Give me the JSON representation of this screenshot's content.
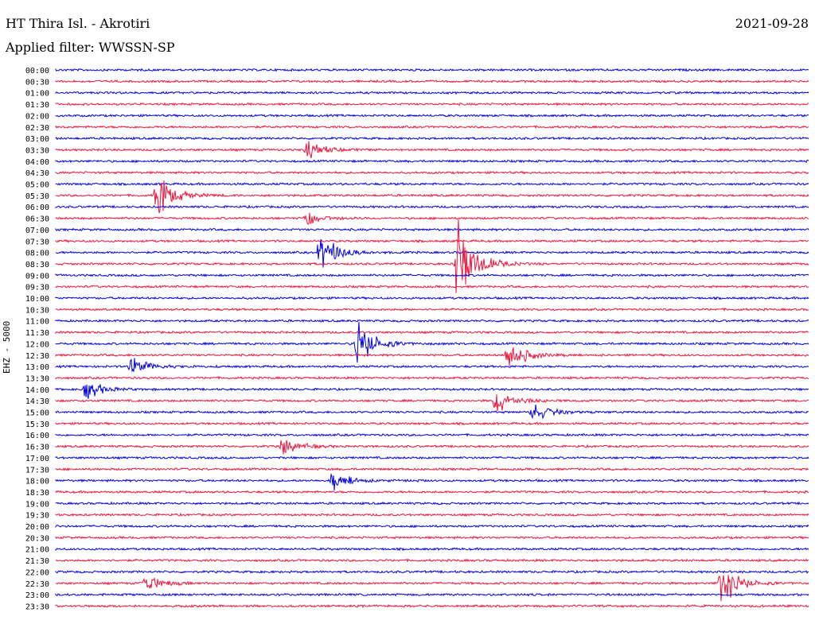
{
  "header": {
    "station": "HT Thira Isl. - Akrotiri",
    "filter": "Applied filter: WWSSN-SP",
    "date": "2021-09-28",
    "channel": "EHZ - 5000"
  },
  "colors": {
    "odd_trace": "#0000e6",
    "even_trace": "#f0143c"
  },
  "chart_data": {
    "type": "line",
    "title": "",
    "xlabel": "",
    "ylabel": "EHZ - 5000",
    "row_labels": [
      "00:00",
      "00:30",
      "01:00",
      "01:30",
      "02:00",
      "02:30",
      "03:00",
      "03:30",
      "04:00",
      "04:30",
      "05:00",
      "05:30",
      "06:00",
      "06:30",
      "07:00",
      "07:30",
      "08:00",
      "08:30",
      "09:00",
      "09:30",
      "10:00",
      "10:30",
      "11:00",
      "11:30",
      "12:00",
      "12:30",
      "13:00",
      "13:30",
      "14:00",
      "14:30",
      "15:00",
      "15:30",
      "16:00",
      "16:30",
      "17:00",
      "17:30",
      "18:00",
      "18:30",
      "19:00",
      "19:30",
      "20:00",
      "20:30",
      "21:00",
      "21:30",
      "22:00",
      "22:30",
      "23:00",
      "23:30"
    ],
    "row_minutes": 30,
    "events": [
      {
        "row": 7,
        "minute": 10.0,
        "amp": 1.8
      },
      {
        "row": 11,
        "minute": 4.0,
        "amp": 4.5
      },
      {
        "row": 13,
        "minute": 10.0,
        "amp": 1.5
      },
      {
        "row": 16,
        "minute": 10.5,
        "amp": 4.5
      },
      {
        "row": 17,
        "minute": 16.0,
        "amp": 10.0
      },
      {
        "row": 24,
        "minute": 12.0,
        "amp": 5.0
      },
      {
        "row": 25,
        "minute": 18.0,
        "amp": 3.5
      },
      {
        "row": 26,
        "minute": 3.0,
        "amp": 2.0
      },
      {
        "row": 28,
        "minute": 1.2,
        "amp": 2.0
      },
      {
        "row": 29,
        "minute": 17.5,
        "amp": 3.0
      },
      {
        "row": 30,
        "minute": 19.0,
        "amp": 2.0
      },
      {
        "row": 33,
        "minute": 9.0,
        "amp": 2.0
      },
      {
        "row": 36,
        "minute": 11.0,
        "amp": 2.0
      },
      {
        "row": 45,
        "minute": 3.5,
        "amp": 2.0
      },
      {
        "row": 45,
        "minute": 26.5,
        "amp": 4.5
      }
    ]
  }
}
